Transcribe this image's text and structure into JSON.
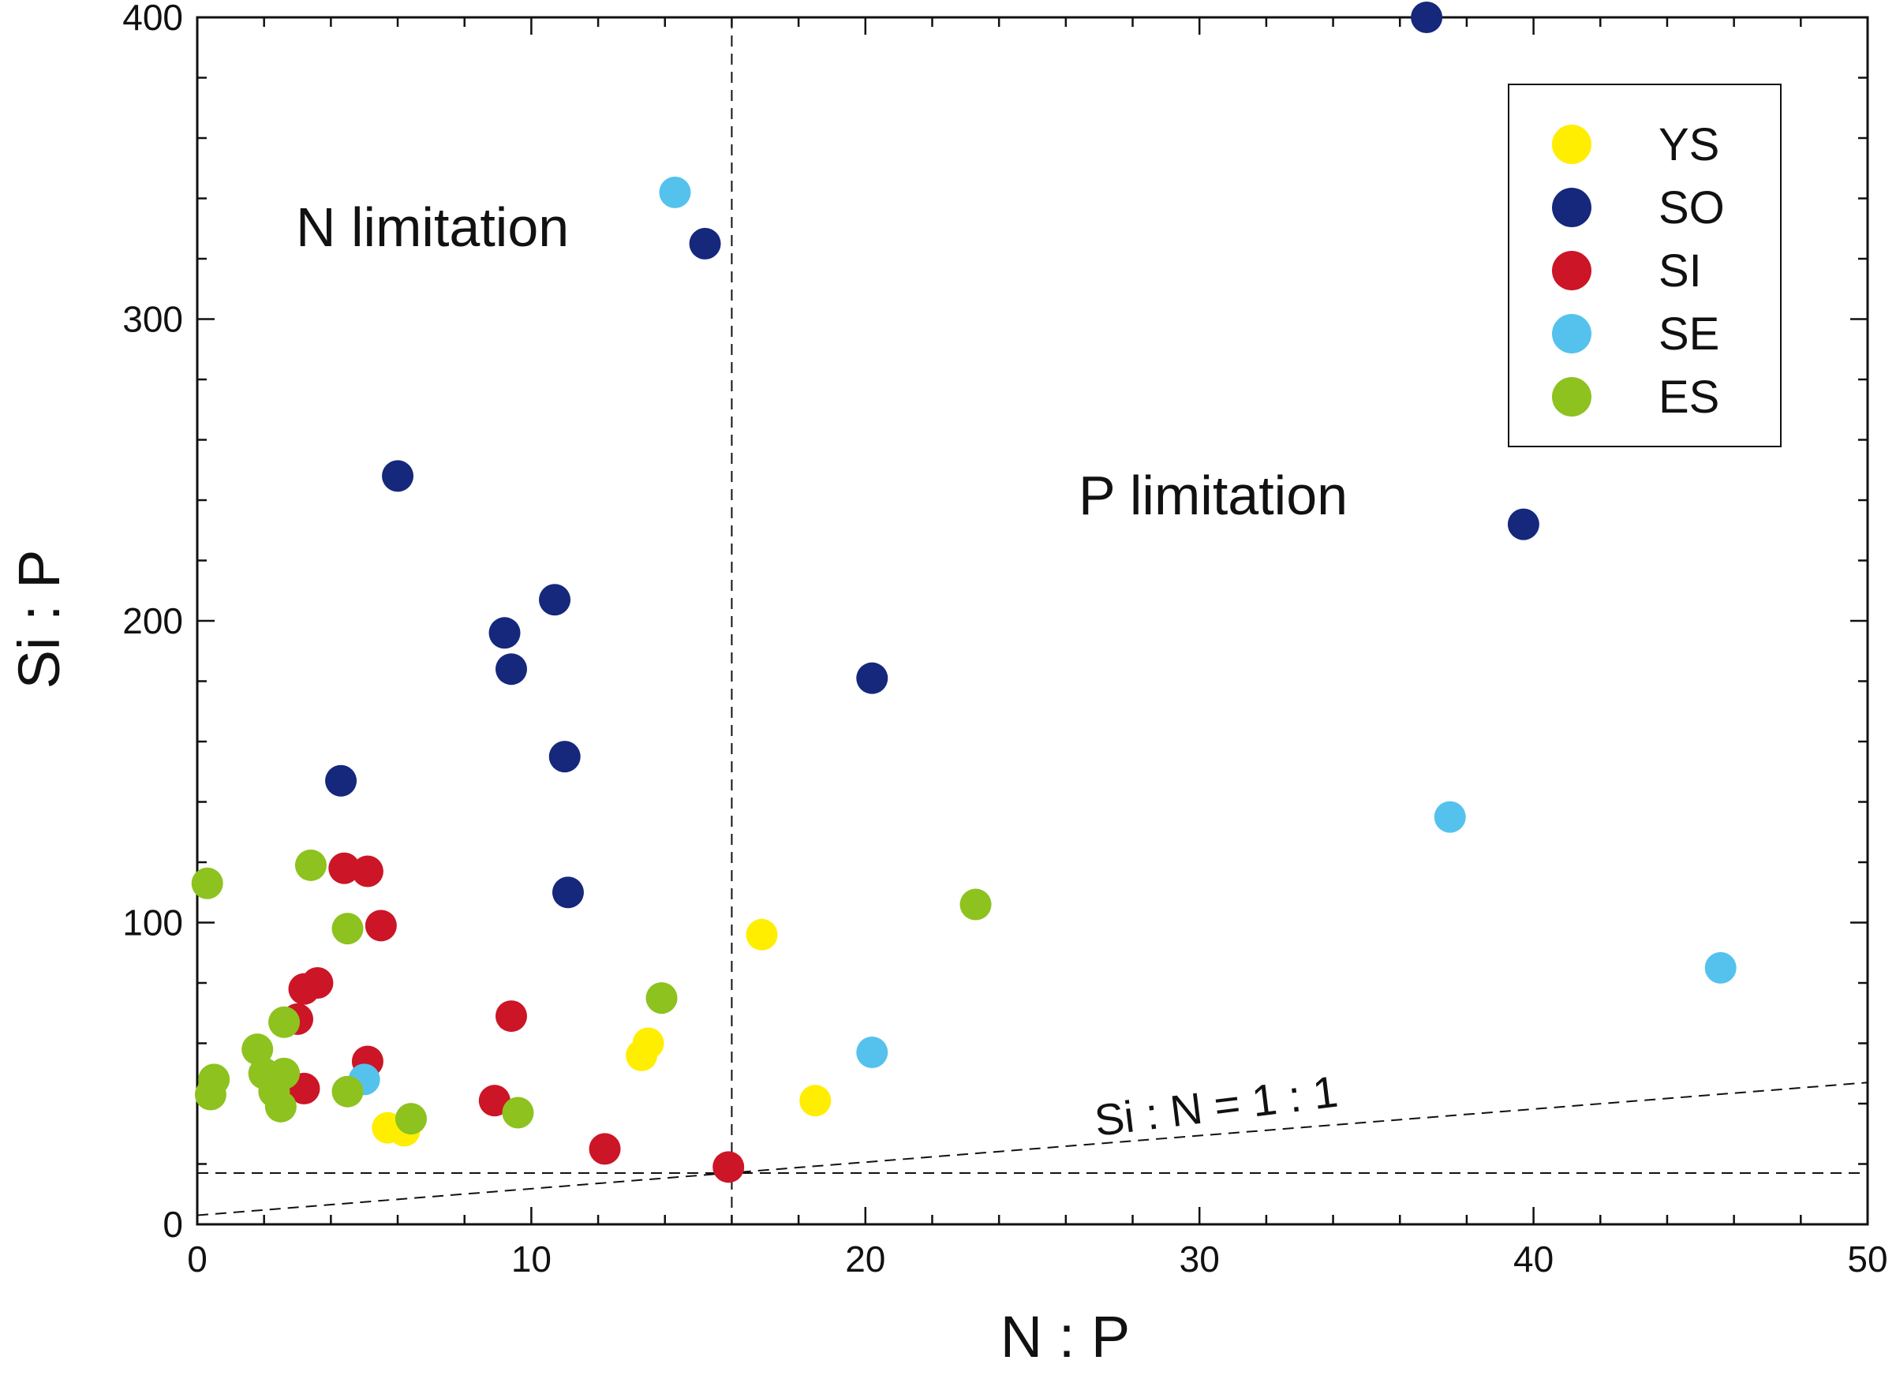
{
  "chart_data": {
    "type": "scatter",
    "xlabel": "N : P",
    "ylabel": "Si : P",
    "xlim": [
      0,
      50
    ],
    "ylim": [
      0,
      400
    ],
    "x_ticks": [
      0,
      10,
      20,
      30,
      40,
      50
    ],
    "y_ticks": [
      0,
      100,
      200,
      300,
      400
    ],
    "grid": false,
    "legend_position": "top-right",
    "annotations": {
      "n_limitation": "N limitation",
      "p_limitation": "P limitation",
      "si_n_line": "Si : N = 1 : 1"
    },
    "reference_lines": {
      "vertical_x": 16,
      "horizontal_y": 17,
      "si_n_line": {
        "x": [
          0,
          50
        ],
        "y": [
          3,
          47
        ]
      }
    },
    "series": [
      {
        "name": "YS",
        "color": "#ffee00",
        "points": [
          [
            16.9,
            96
          ],
          [
            18.5,
            41
          ],
          [
            13.5,
            60
          ],
          [
            13.3,
            56
          ],
          [
            5.7,
            32
          ],
          [
            6.2,
            31
          ]
        ]
      },
      {
        "name": "SO",
        "color": "#15287c",
        "points": [
          [
            36.8,
            400
          ],
          [
            15.2,
            325
          ],
          [
            39.7,
            232
          ],
          [
            6.0,
            248
          ],
          [
            10.7,
            207
          ],
          [
            9.2,
            196
          ],
          [
            9.4,
            184
          ],
          [
            20.2,
            181
          ],
          [
            11.0,
            155
          ],
          [
            4.3,
            147
          ],
          [
            11.1,
            110
          ]
        ]
      },
      {
        "name": "SI",
        "color": "#cc1526",
        "points": [
          [
            4.4,
            118
          ],
          [
            5.1,
            117
          ],
          [
            5.5,
            99
          ],
          [
            3.6,
            80
          ],
          [
            3.2,
            78
          ],
          [
            3.0,
            68
          ],
          [
            9.4,
            69
          ],
          [
            5.1,
            54
          ],
          [
            3.2,
            45
          ],
          [
            8.9,
            41
          ],
          [
            12.2,
            25
          ],
          [
            15.9,
            19
          ]
        ]
      },
      {
        "name": "SE",
        "color": "#55c2ee",
        "points": [
          [
            14.3,
            342
          ],
          [
            37.5,
            135
          ],
          [
            45.6,
            85
          ],
          [
            20.2,
            57
          ],
          [
            5.0,
            48
          ]
        ]
      },
      {
        "name": "ES",
        "color": "#8dc21f",
        "points": [
          [
            0.3,
            113
          ],
          [
            3.4,
            119
          ],
          [
            4.5,
            98
          ],
          [
            23.3,
            106
          ],
          [
            13.9,
            75
          ],
          [
            2.6,
            67
          ],
          [
            1.8,
            58
          ],
          [
            2.0,
            50
          ],
          [
            2.6,
            50
          ],
          [
            0.5,
            48
          ],
          [
            0.4,
            43
          ],
          [
            2.3,
            44
          ],
          [
            4.5,
            44
          ],
          [
            2.5,
            39
          ],
          [
            9.6,
            37
          ],
          [
            6.4,
            35
          ]
        ]
      }
    ]
  }
}
